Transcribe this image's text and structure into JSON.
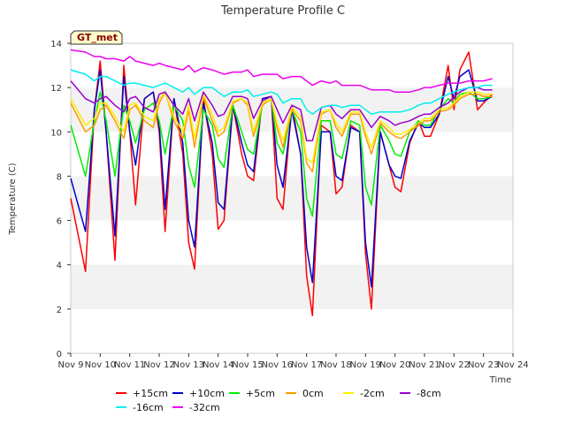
{
  "chart_data": {
    "type": "line",
    "title": "Temperature Profile C",
    "xlabel": "Time",
    "ylabel": "Temperature (C)",
    "site_label": "GT_met",
    "ylim": [
      0,
      14
    ],
    "yticks": [
      0,
      2,
      4,
      6,
      8,
      10,
      12,
      14
    ],
    "xlim": [
      0,
      15
    ],
    "xticks": [
      "Nov 9",
      "Nov 10",
      "Nov 11",
      "Nov 12",
      "Nov 13",
      "Nov 14",
      "Nov 15",
      "Nov 16",
      "Nov 17",
      "Nov 18",
      "Nov 19",
      "Nov 20",
      "Nov 21",
      "Nov 22",
      "Nov 23",
      "Nov 24"
    ],
    "grid": "horizontal bands",
    "legend_position": "bottom",
    "x_sample_days": [
      0.0,
      0.5,
      0.8,
      1.0,
      1.2,
      1.5,
      1.8,
      2.0,
      2.2,
      2.5,
      2.8,
      3.0,
      3.2,
      3.5,
      3.8,
      4.0,
      4.2,
      4.5,
      4.8,
      5.0,
      5.2,
      5.5,
      5.8,
      6.0,
      6.2,
      6.5,
      6.8,
      7.0,
      7.2,
      7.5,
      7.8,
      8.0,
      8.2,
      8.5,
      8.8,
      9.0,
      9.2,
      9.5,
      9.8,
      10.0,
      10.2,
      10.5,
      10.8,
      11.0,
      11.2,
      11.5,
      11.8,
      12.0,
      12.2,
      12.5,
      12.8,
      13.0,
      13.2,
      13.5,
      13.8,
      14.0,
      14.3
    ],
    "series": [
      {
        "name": "+15cm",
        "color": "#ff0000",
        "values": [
          7.0,
          3.7,
          11.0,
          13.2,
          10.0,
          4.2,
          13.0,
          10.0,
          6.7,
          11.5,
          11.8,
          10.0,
          5.5,
          11.5,
          9.0,
          5.0,
          3.8,
          11.5,
          9.0,
          5.6,
          6.0,
          11.2,
          9.0,
          8.0,
          7.8,
          11.5,
          11.6,
          7.0,
          6.5,
          11.2,
          9.0,
          3.5,
          1.7,
          10.3,
          10.0,
          7.2,
          7.5,
          10.3,
          10.0,
          4.5,
          2.0,
          10.0,
          8.5,
          7.5,
          7.3,
          9.5,
          10.5,
          9.8,
          9.8,
          10.8,
          13.0,
          11.0,
          12.8,
          13.6,
          11.0,
          11.3,
          11.7
        ]
      },
      {
        "name": "+10cm",
        "color": "#0000cc",
        "values": [
          7.9,
          5.5,
          11.0,
          12.8,
          10.0,
          5.3,
          12.5,
          10.0,
          8.5,
          11.5,
          11.8,
          10.3,
          6.5,
          11.5,
          9.5,
          6.0,
          4.8,
          11.3,
          9.5,
          6.8,
          6.5,
          11.2,
          9.5,
          8.5,
          8.2,
          11.5,
          11.6,
          8.5,
          7.5,
          11.0,
          9.0,
          4.8,
          3.2,
          10.0,
          10.0,
          8.0,
          7.8,
          10.2,
          10.0,
          5.0,
          3.0,
          10.0,
          8.5,
          8.0,
          7.9,
          9.6,
          10.4,
          10.2,
          10.2,
          10.8,
          12.5,
          11.5,
          12.5,
          12.8,
          11.4,
          11.4,
          11.6
        ]
      },
      {
        "name": "+5cm",
        "color": "#00ee00",
        "values": [
          10.3,
          8.0,
          10.5,
          11.8,
          10.5,
          8.0,
          11.2,
          10.5,
          9.5,
          11.0,
          11.3,
          10.5,
          9.0,
          11.2,
          10.5,
          8.5,
          7.5,
          11.0,
          10.3,
          8.8,
          8.4,
          11.2,
          10.0,
          9.2,
          9.0,
          11.2,
          11.5,
          9.5,
          9.0,
          11.0,
          10.0,
          7.0,
          6.2,
          10.5,
          10.5,
          9.0,
          8.8,
          10.5,
          10.3,
          7.5,
          6.7,
          10.3,
          9.6,
          9.0,
          8.9,
          10.0,
          10.5,
          10.3,
          10.3,
          11.0,
          11.5,
          11.3,
          11.7,
          11.8,
          11.5,
          11.5,
          11.6
        ]
      },
      {
        "name": "0cm",
        "color": "#ff9900",
        "values": [
          11.3,
          10.0,
          10.3,
          11.0,
          11.2,
          10.5,
          9.7,
          11.0,
          11.2,
          10.5,
          10.2,
          11.3,
          11.8,
          10.5,
          9.7,
          11.0,
          9.3,
          11.6,
          10.5,
          9.8,
          10.0,
          11.3,
          11.5,
          11.2,
          9.8,
          11.2,
          11.5,
          10.2,
          9.3,
          11.0,
          10.5,
          8.6,
          8.2,
          10.8,
          11.0,
          10.2,
          9.8,
          10.8,
          10.8,
          9.8,
          9.0,
          10.4,
          10.0,
          9.8,
          9.7,
          10.0,
          10.3,
          10.5,
          10.5,
          10.9,
          11.0,
          11.2,
          11.5,
          11.7,
          11.7,
          11.6,
          11.6
        ]
      },
      {
        "name": "-2cm",
        "color": "#ffee00",
        "values": [
          11.5,
          10.3,
          10.6,
          11.3,
          11.3,
          10.7,
          10.0,
          11.2,
          11.3,
          10.7,
          10.5,
          11.5,
          11.8,
          10.7,
          10.0,
          11.2,
          9.7,
          11.7,
          10.8,
          10.0,
          10.2,
          11.4,
          11.5,
          11.3,
          10.0,
          11.3,
          11.5,
          10.4,
          9.6,
          11.1,
          10.7,
          8.8,
          8.6,
          10.9,
          11.0,
          10.4,
          10.0,
          10.9,
          10.9,
          10.0,
          9.3,
          10.5,
          10.2,
          9.9,
          9.9,
          10.1,
          10.4,
          10.6,
          10.6,
          11.0,
          11.1,
          11.3,
          11.6,
          11.8,
          11.8,
          11.7,
          11.7
        ]
      },
      {
        "name": "-8cm",
        "color": "#9900cc",
        "values": [
          12.3,
          11.5,
          11.3,
          11.5,
          11.6,
          11.2,
          10.9,
          11.5,
          11.6,
          11.1,
          10.9,
          11.7,
          11.8,
          11.2,
          10.8,
          11.5,
          10.5,
          11.8,
          11.2,
          10.7,
          10.8,
          11.6,
          11.6,
          11.5,
          10.6,
          11.4,
          11.6,
          11.0,
          10.4,
          11.2,
          11.0,
          9.6,
          9.6,
          11.1,
          11.2,
          10.8,
          10.6,
          11.0,
          11.0,
          10.6,
          10.2,
          10.7,
          10.5,
          10.3,
          10.4,
          10.5,
          10.7,
          10.8,
          10.8,
          11.1,
          11.3,
          11.6,
          11.8,
          12.0,
          12.0,
          11.9,
          11.9
        ]
      },
      {
        "name": "-16cm",
        "color": "#00eeee",
        "values": [
          12.8,
          12.6,
          12.3,
          12.5,
          12.5,
          12.3,
          12.1,
          12.2,
          12.2,
          12.1,
          12.0,
          12.1,
          12.2,
          12.0,
          11.8,
          12.0,
          11.7,
          12.0,
          12.0,
          11.8,
          11.6,
          11.8,
          11.8,
          11.9,
          11.6,
          11.7,
          11.8,
          11.7,
          11.3,
          11.5,
          11.5,
          11.0,
          10.8,
          11.1,
          11.2,
          11.2,
          11.1,
          11.2,
          11.2,
          11.0,
          10.8,
          10.9,
          10.9,
          10.9,
          10.9,
          11.0,
          11.2,
          11.3,
          11.3,
          11.5,
          11.7,
          11.8,
          11.9,
          12.0,
          12.0,
          12.1,
          12.1
        ]
      },
      {
        "name": "-32cm",
        "color": "#ee00ee",
        "values": [
          13.7,
          13.6,
          13.4,
          13.4,
          13.3,
          13.3,
          13.2,
          13.4,
          13.2,
          13.1,
          13.0,
          13.1,
          13.0,
          12.9,
          12.8,
          13.0,
          12.7,
          12.9,
          12.8,
          12.7,
          12.6,
          12.7,
          12.7,
          12.8,
          12.5,
          12.6,
          12.6,
          12.6,
          12.4,
          12.5,
          12.5,
          12.3,
          12.1,
          12.3,
          12.2,
          12.3,
          12.1,
          12.1,
          12.1,
          12.0,
          11.9,
          11.9,
          11.9,
          11.8,
          11.8,
          11.8,
          11.9,
          12.0,
          12.0,
          12.1,
          12.2,
          12.2,
          12.2,
          12.3,
          12.3,
          12.3,
          12.4
        ]
      }
    ]
  }
}
